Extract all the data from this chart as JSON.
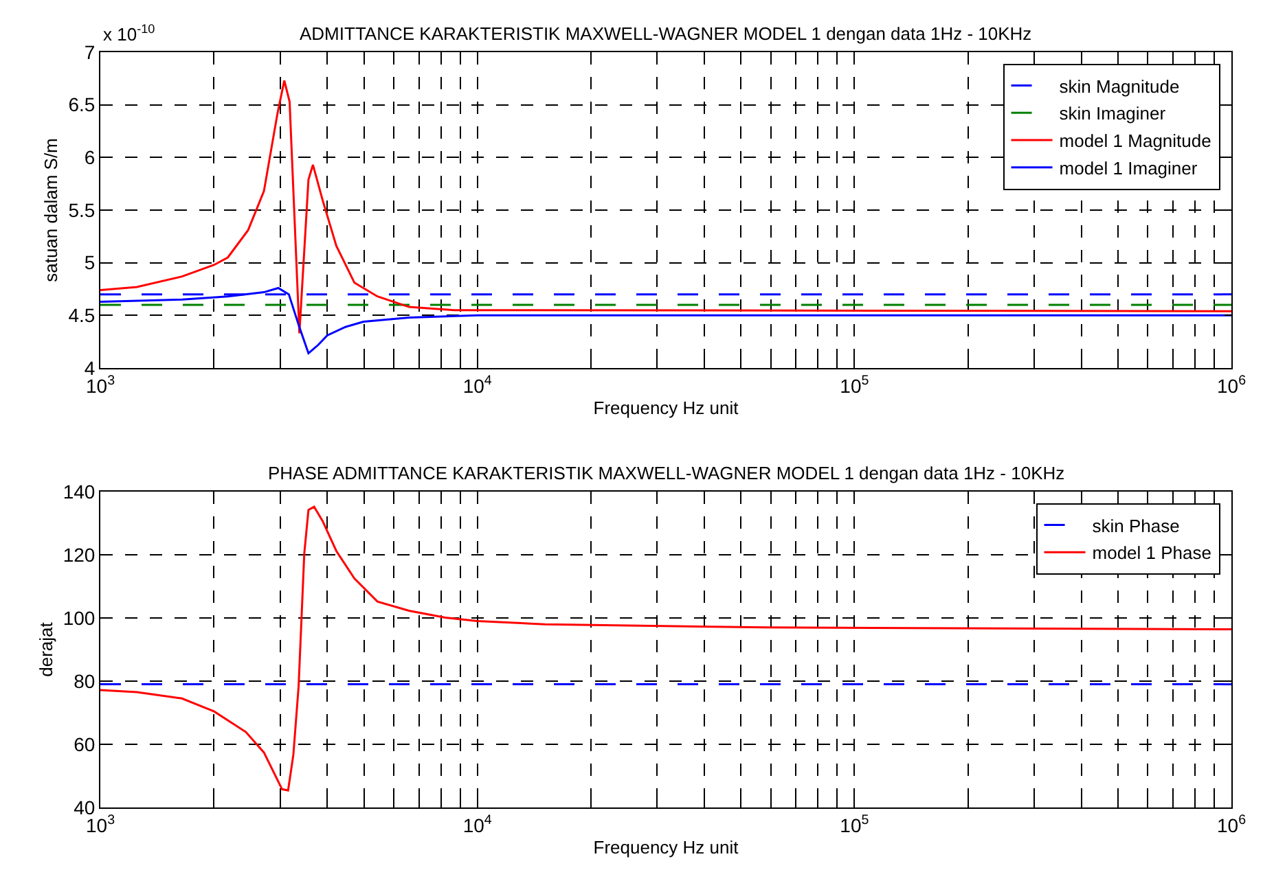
{
  "chart_data": [
    {
      "type": "line",
      "title": "ADMITTANCE KARAKTERISTIK MAXWELL-WAGNER MODEL 1 dengan data 1Hz - 10KHz",
      "xlabel": "Frequency Hz unit",
      "ylabel": "satuan dalam S/m",
      "annotations": [
        "x 10$^{-10}$"
      ],
      "log": "x",
      "grid": true,
      "legend": "top right",
      "xlim": [
        1000,
        1000000
      ],
      "ylim": [
        4,
        7
      ],
      "xticks": [
        {
          "value": 1000,
          "label": "10$^{3}$"
        },
        {
          "value": 2000,
          "label": null
        },
        {
          "value": 3000,
          "label": null
        },
        {
          "value": 4000,
          "label": null
        },
        {
          "value": 5000,
          "label": null
        },
        {
          "value": 6000,
          "label": null
        },
        {
          "value": 7000,
          "label": null
        },
        {
          "value": 8000,
          "label": null
        },
        {
          "value": 9000,
          "label": null
        },
        {
          "value": 10000,
          "label": "10$^{4}$"
        },
        {
          "value": 20000,
          "label": null
        },
        {
          "value": 30000,
          "label": null
        },
        {
          "value": 40000,
          "label": null
        },
        {
          "value": 50000,
          "label": null
        },
        {
          "value": 60000,
          "label": null
        },
        {
          "value": 70000,
          "label": null
        },
        {
          "value": 80000,
          "label": null
        },
        {
          "value": 90000,
          "label": null
        },
        {
          "value": 100000,
          "label": "10$^{5}$"
        },
        {
          "value": 200000,
          "label": null
        },
        {
          "value": 300000,
          "label": null
        },
        {
          "value": 400000,
          "label": null
        },
        {
          "value": 500000,
          "label": null
        },
        {
          "value": 600000,
          "label": null
        },
        {
          "value": 700000,
          "label": null
        },
        {
          "value": 800000,
          "label": null
        },
        {
          "value": 900000,
          "label": null
        },
        {
          "value": 1000000,
          "label": "10$^{6}$"
        }
      ],
      "yticks": [
        4,
        4.5,
        5,
        5.5,
        6,
        6.5,
        7
      ],
      "series": [
        {
          "name": "skin Magnitude",
          "color": "#0000ff",
          "line_style": "dashed",
          "x": [
            1000,
            1000000
          ],
          "values": [
            4.7,
            4.7
          ]
        },
        {
          "name": "skin Imaginer",
          "color": "#008000",
          "line_style": "dashed",
          "x": [
            1000,
            1000000
          ],
          "values": [
            4.6,
            4.6
          ]
        },
        {
          "name": "model 1 Magnitude",
          "color": "#ff0000",
          "line_style": "solid",
          "x": [
            1000,
            1250,
            1648,
            2004,
            2178,
            2466,
            2716,
            2951,
            3076,
            3177,
            3373,
            3565,
            3664,
            3890,
            4227,
            4721,
            5433,
            6592,
            8690,
            10000,
            1000000
          ],
          "values": [
            4.74,
            4.77,
            4.87,
            4.98,
            5.05,
            5.31,
            5.68,
            6.42,
            6.73,
            6.53,
            4.33,
            5.79,
            5.93,
            5.59,
            5.16,
            4.81,
            4.68,
            4.58,
            4.55,
            4.55,
            4.54
          ]
        },
        {
          "name": "model 1 Imaginer",
          "color": "#0000ff",
          "line_style": "solid",
          "x": [
            1000,
            1648,
            2178,
            2716,
            2965,
            3162,
            3357,
            3565,
            3784,
            3999,
            4467,
            4989,
            6592,
            10000,
            1000000
          ],
          "values": [
            4.63,
            4.65,
            4.68,
            4.72,
            4.76,
            4.7,
            4.41,
            4.14,
            4.22,
            4.31,
            4.39,
            4.44,
            4.48,
            4.5,
            4.5
          ]
        }
      ]
    },
    {
      "type": "line",
      "title": "PHASE ADMITTANCE KARAKTERISTIK MAXWELL-WAGNER MODEL 1 dengan data 1Hz - 10KHz",
      "xlabel": "Frequency Hz unit",
      "ylabel": "derajat",
      "log": "x",
      "grid": true,
      "legend": "top right",
      "xlim": [
        1000,
        1000000
      ],
      "ylim": [
        40,
        140
      ],
      "xticks": [
        {
          "value": 1000,
          "label": "10$^{3}$"
        },
        {
          "value": 2000,
          "label": null
        },
        {
          "value": 3000,
          "label": null
        },
        {
          "value": 4000,
          "label": null
        },
        {
          "value": 5000,
          "label": null
        },
        {
          "value": 6000,
          "label": null
        },
        {
          "value": 7000,
          "label": null
        },
        {
          "value": 8000,
          "label": null
        },
        {
          "value": 9000,
          "label": null
        },
        {
          "value": 10000,
          "label": "10$^{4}$"
        },
        {
          "value": 20000,
          "label": null
        },
        {
          "value": 30000,
          "label": null
        },
        {
          "value": 40000,
          "label": null
        },
        {
          "value": 50000,
          "label": null
        },
        {
          "value": 60000,
          "label": null
        },
        {
          "value": 70000,
          "label": null
        },
        {
          "value": 80000,
          "label": null
        },
        {
          "value": 90000,
          "label": null
        },
        {
          "value": 100000,
          "label": "10$^{5}$"
        },
        {
          "value": 200000,
          "label": null
        },
        {
          "value": 300000,
          "label": null
        },
        {
          "value": 400000,
          "label": null
        },
        {
          "value": 500000,
          "label": null
        },
        {
          "value": 600000,
          "label": null
        },
        {
          "value": 700000,
          "label": null
        },
        {
          "value": 800000,
          "label": null
        },
        {
          "value": 900000,
          "label": null
        },
        {
          "value": 1000000,
          "label": "10$^{6}$"
        }
      ],
      "yticks": [
        40,
        60,
        80,
        100,
        120,
        140
      ],
      "series": [
        {
          "name": "skin Phase",
          "color": "#0000ff",
          "line_style": "dashed",
          "x": [
            1000,
            1000000
          ],
          "values": [
            79,
            79
          ]
        },
        {
          "name": "model 1 Phase",
          "color": "#ff0000",
          "line_style": "solid",
          "x": [
            1000,
            1250,
            1648,
            2004,
            2432,
            2716,
            3034,
            3148,
            3251,
            3357,
            3475,
            3565,
            3690,
            3890,
            4227,
            4721,
            5433,
            6592,
            8222,
            10000,
            15100,
            58600,
            1000000
          ],
          "values": [
            77.2,
            76.5,
            74.5,
            70.4,
            63.9,
            57.4,
            45.8,
            45.4,
            56.7,
            78.4,
            120.4,
            134.2,
            135.2,
            130.6,
            121.2,
            112.5,
            105.2,
            102.3,
            100.1,
            99,
            98,
            97,
            96.4
          ]
        }
      ]
    }
  ]
}
